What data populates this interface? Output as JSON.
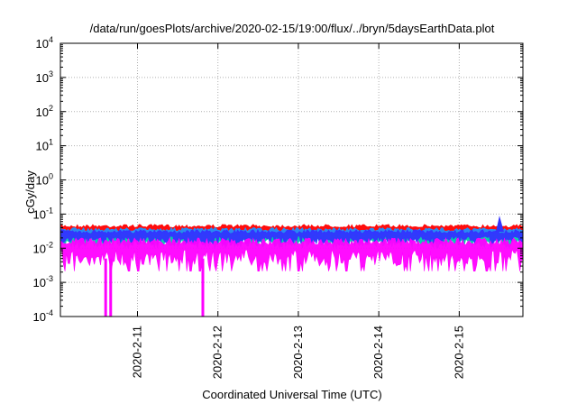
{
  "chart_data": {
    "type": "area",
    "title": "/data/run/goesPlots/archive/2020-02-15/19:00/flux/../bryn/5daysEarthData.plot",
    "xlabel": "Coordinated Universal Time (UTC)",
    "ylabel": "cGy/day",
    "yscale": "log",
    "ylim": [
      0.0001,
      10000
    ],
    "y_ticks": [
      {
        "value": 0.0001,
        "base": "10",
        "exp": "-4"
      },
      {
        "value": 0.001,
        "base": "10",
        "exp": "-3"
      },
      {
        "value": 0.01,
        "base": "10",
        "exp": "-2"
      },
      {
        "value": 0.1,
        "base": "10",
        "exp": "-1"
      },
      {
        "value": 1,
        "base": "10",
        "exp": "0"
      },
      {
        "value": 10,
        "base": "10",
        "exp": "1"
      },
      {
        "value": 100,
        "base": "10",
        "exp": "2"
      },
      {
        "value": 1000,
        "base": "10",
        "exp": "3"
      },
      {
        "value": 10000,
        "base": "10",
        "exp": "4"
      }
    ],
    "xlim": [
      "2020-02-10T01:00",
      "2020-02-15T19:00"
    ],
    "x_ticks": [
      {
        "value": "2020-02-11T00:00",
        "label": "2020-2-11"
      },
      {
        "value": "2020-02-12T00:00",
        "label": "2020-2-12"
      },
      {
        "value": "2020-02-13T00:00",
        "label": "2020-2-13"
      },
      {
        "value": "2020-02-14T00:00",
        "label": "2020-2-14"
      },
      {
        "value": "2020-02-15T00:00",
        "label": "2020-2-15"
      }
    ],
    "grid": true,
    "series": [
      {
        "color": "#ff0000",
        "band": [
          0.02,
          0.05
        ]
      },
      {
        "color": "#1e90ff",
        "band": [
          0.015,
          0.04
        ]
      },
      {
        "color": "#00ccaa",
        "band": [
          0.01,
          0.03
        ]
      },
      {
        "color": "#3333ff",
        "band": [
          0.012,
          0.035
        ]
      },
      {
        "color": "#ff00ff",
        "band": [
          0.003,
          0.02
        ]
      }
    ],
    "dropouts": [
      {
        "x": "2020-02-10T14:30",
        "y": 0.0001
      },
      {
        "x": "2020-02-10T16:00",
        "y": 0.0001
      },
      {
        "x": "2020-02-11T19:30",
        "y": 0.0001
      }
    ],
    "spike": {
      "x": "2020-02-15T12:00",
      "y": 0.09
    }
  }
}
